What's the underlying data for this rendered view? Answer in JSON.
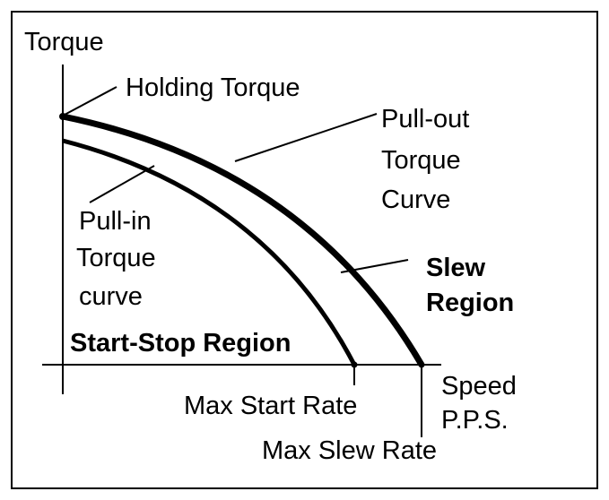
{
  "labels": {
    "y_axis": "Torque",
    "holding_torque": "Holding Torque",
    "pull_out": [
      "Pull-out",
      "Torque",
      "Curve"
    ],
    "pull_in": [
      "Pull-in",
      "Torque",
      "curve"
    ],
    "slew_region": [
      "Slew",
      "Region"
    ],
    "start_stop_region": "Start-Stop Region",
    "max_start_rate": "Max Start Rate",
    "x_axis": [
      "Speed",
      "P.P.S."
    ],
    "max_slew_rate": "Max Slew Rate"
  },
  "colors": {
    "line": "#000000",
    "background": "#ffffff"
  }
}
